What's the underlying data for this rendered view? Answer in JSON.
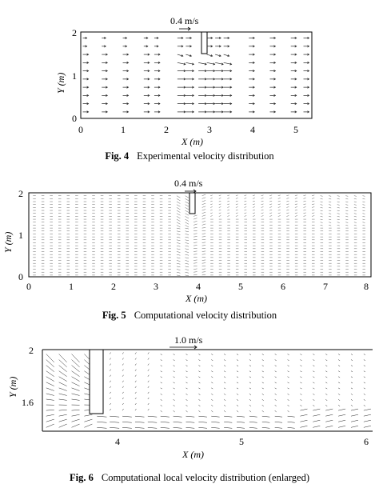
{
  "figures": [
    {
      "label": "Fig. 4",
      "caption": "Experimental velocity distribution",
      "scale_label": "0.4 m/s",
      "x_axis_label": "X (m)",
      "y_axis_label": "Y (m)",
      "x_ticks": [
        "0",
        "1",
        "2",
        "3",
        "4",
        "5"
      ],
      "y_ticks": [
        "0",
        "1",
        "2"
      ]
    },
    {
      "label": "Fig. 5",
      "caption": "Computational velocity distribution",
      "scale_label": "0.4 m/s",
      "x_axis_label": "X (m)",
      "y_axis_label": "Y (m)",
      "x_ticks": [
        "0",
        "1",
        "2",
        "3",
        "4",
        "5",
        "6",
        "7",
        "8"
      ],
      "y_ticks": [
        "0",
        "1",
        "2"
      ]
    },
    {
      "label": "Fig. 6",
      "caption": "Computational local velocity distribution (enlarged)",
      "scale_label": "1.0 m/s",
      "x_axis_label": "X (m)",
      "y_axis_label": "Y (m)",
      "x_ticks": [
        "4",
        "5",
        "6"
      ],
      "y_ticks": [
        "1.6",
        "2"
      ]
    }
  ],
  "chart_data": [
    {
      "type": "vector_field",
      "title": "Experimental velocity distribution",
      "xlabel": "X (m)",
      "ylabel": "Y (m)",
      "xlim": [
        0,
        5.5
      ],
      "ylim": [
        0,
        2
      ],
      "obstacle": {
        "x": [
          2.82,
          2.92
        ],
        "y": [
          1.5,
          2.0
        ]
      },
      "reference_vector": {
        "magnitude_m_per_s": 0.4
      },
      "columns_x": [
        0.05,
        0.5,
        1.0,
        1.5,
        1.75,
        2.3,
        2.5,
        2.8,
        3.0,
        3.2,
        3.4,
        4.0,
        4.5,
        5.0,
        5.3
      ]
    },
    {
      "type": "vector_field",
      "title": "Computational velocity distribution",
      "xlabel": "X (m)",
      "ylabel": "Y (m)",
      "xlim": [
        0,
        8.1
      ],
      "ylim": [
        0,
        2
      ],
      "obstacle": {
        "x": [
          3.82,
          3.95
        ],
        "y": [
          1.5,
          2.0
        ]
      },
      "reference_vector": {
        "magnitude_m_per_s": 0.4
      },
      "grid_spacing_x": 0.2,
      "grid_spacing_y": 0.07
    },
    {
      "type": "vector_field",
      "title": "Computational local velocity distribution (enlarged)",
      "xlabel": "X (m)",
      "ylabel": "Y (m)",
      "xlim": [
        3.4,
        6.0
      ],
      "ylim": [
        1.35,
        2.0
      ],
      "obstacle": {
        "x": [
          3.78,
          3.88
        ],
        "y": [
          1.5,
          2.0
        ]
      },
      "reference_vector": {
        "magnitude_m_per_s": 1.0
      }
    }
  ]
}
